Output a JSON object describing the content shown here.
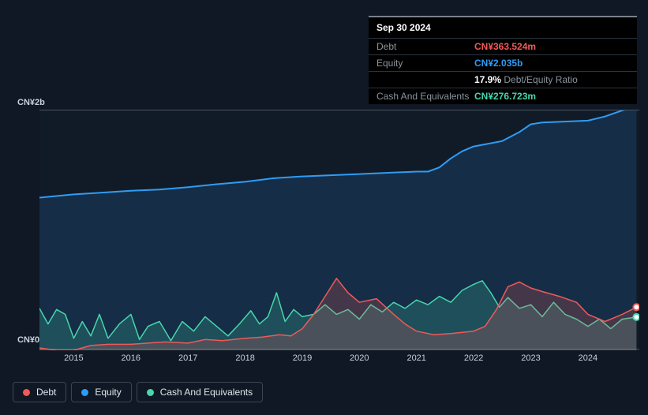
{
  "tooltip": {
    "date": "Sep 30 2024",
    "rows": [
      {
        "label": "Debt",
        "value": "CN¥363.524m",
        "color": "#ef5a5a"
      },
      {
        "label": "Equity",
        "value": "CN¥2.035b",
        "color": "#2f9cf4"
      },
      {
        "label": "",
        "value": "17.9%",
        "suffix": " Debt/Equity Ratio",
        "color": "#ffffff",
        "suffixColor": "#8a949e"
      },
      {
        "label": "Cash And Equivalents",
        "value": "CN¥276.723m",
        "color": "#47d7ac"
      }
    ]
  },
  "chart": {
    "y_max_label": "CN¥2b",
    "y_min_label": "CN¥0",
    "y_max": 2.0,
    "y_min": 0.0,
    "x_min": 2014.4,
    "x_max": 2024.9,
    "x_ticks": [
      2015,
      2016,
      2017,
      2018,
      2019,
      2020,
      2021,
      2022,
      2023,
      2024
    ],
    "background_color": "#111b28",
    "series": [
      {
        "name": "Equity",
        "color": "#2f9cf4",
        "fill_opacity": 0.15,
        "stroke_width": 2,
        "data": [
          [
            2014.4,
            1.273
          ],
          [
            2015.0,
            1.3
          ],
          [
            2015.5,
            1.315
          ],
          [
            2016.0,
            1.33
          ],
          [
            2016.5,
            1.34
          ],
          [
            2017.0,
            1.36
          ],
          [
            2017.5,
            1.385
          ],
          [
            2018.0,
            1.405
          ],
          [
            2018.5,
            1.435
          ],
          [
            2019.0,
            1.45
          ],
          [
            2019.5,
            1.46
          ],
          [
            2020.0,
            1.47
          ],
          [
            2020.5,
            1.48
          ],
          [
            2021.0,
            1.49
          ],
          [
            2021.2,
            1.49
          ],
          [
            2021.4,
            1.525
          ],
          [
            2021.6,
            1.6
          ],
          [
            2021.8,
            1.66
          ],
          [
            2022.0,
            1.7
          ],
          [
            2022.5,
            1.745
          ],
          [
            2022.8,
            1.82
          ],
          [
            2023.0,
            1.885
          ],
          [
            2023.2,
            1.9
          ],
          [
            2023.5,
            1.905
          ],
          [
            2024.0,
            1.915
          ],
          [
            2024.3,
            1.95
          ],
          [
            2024.6,
            2.0
          ],
          [
            2024.85,
            2.035
          ]
        ]
      },
      {
        "name": "Debt",
        "color": "#ef5a5a",
        "fill_opacity": 0.22,
        "stroke_width": 1.5,
        "data": [
          [
            2014.4,
            0.02
          ],
          [
            2014.7,
            0.0
          ],
          [
            2015.0,
            0.0
          ],
          [
            2015.3,
            0.04
          ],
          [
            2015.6,
            0.05
          ],
          [
            2016.0,
            0.05
          ],
          [
            2016.3,
            0.06
          ],
          [
            2016.6,
            0.07
          ],
          [
            2017.0,
            0.06
          ],
          [
            2017.3,
            0.09
          ],
          [
            2017.6,
            0.08
          ],
          [
            2018.0,
            0.1
          ],
          [
            2018.3,
            0.11
          ],
          [
            2018.6,
            0.13
          ],
          [
            2018.8,
            0.12
          ],
          [
            2019.0,
            0.18
          ],
          [
            2019.2,
            0.3
          ],
          [
            2019.4,
            0.45
          ],
          [
            2019.6,
            0.6
          ],
          [
            2019.8,
            0.48
          ],
          [
            2020.0,
            0.4
          ],
          [
            2020.3,
            0.43
          ],
          [
            2020.6,
            0.3
          ],
          [
            2020.8,
            0.22
          ],
          [
            2021.0,
            0.16
          ],
          [
            2021.3,
            0.13
          ],
          [
            2021.6,
            0.14
          ],
          [
            2022.0,
            0.16
          ],
          [
            2022.2,
            0.2
          ],
          [
            2022.4,
            0.34
          ],
          [
            2022.6,
            0.53
          ],
          [
            2022.8,
            0.57
          ],
          [
            2023.0,
            0.52
          ],
          [
            2023.2,
            0.49
          ],
          [
            2023.5,
            0.45
          ],
          [
            2023.8,
            0.4
          ],
          [
            2024.0,
            0.3
          ],
          [
            2024.3,
            0.24
          ],
          [
            2024.6,
            0.3
          ],
          [
            2024.85,
            0.36
          ]
        ]
      },
      {
        "name": "Cash And Equivalents",
        "color": "#47d7ac",
        "fill_opacity": 0.2,
        "stroke_width": 1.5,
        "data": [
          [
            2014.4,
            0.35
          ],
          [
            2014.55,
            0.22
          ],
          [
            2014.7,
            0.34
          ],
          [
            2014.85,
            0.3
          ],
          [
            2015.0,
            0.1
          ],
          [
            2015.15,
            0.24
          ],
          [
            2015.3,
            0.12
          ],
          [
            2015.45,
            0.3
          ],
          [
            2015.6,
            0.1
          ],
          [
            2015.8,
            0.22
          ],
          [
            2016.0,
            0.3
          ],
          [
            2016.15,
            0.09
          ],
          [
            2016.3,
            0.2
          ],
          [
            2016.5,
            0.24
          ],
          [
            2016.7,
            0.08
          ],
          [
            2016.9,
            0.24
          ],
          [
            2017.1,
            0.16
          ],
          [
            2017.3,
            0.28
          ],
          [
            2017.5,
            0.2
          ],
          [
            2017.7,
            0.12
          ],
          [
            2017.9,
            0.22
          ],
          [
            2018.1,
            0.33
          ],
          [
            2018.25,
            0.22
          ],
          [
            2018.4,
            0.28
          ],
          [
            2018.55,
            0.48
          ],
          [
            2018.7,
            0.24
          ],
          [
            2018.85,
            0.34
          ],
          [
            2019.0,
            0.28
          ],
          [
            2019.2,
            0.3
          ],
          [
            2019.4,
            0.38
          ],
          [
            2019.6,
            0.3
          ],
          [
            2019.8,
            0.34
          ],
          [
            2020.0,
            0.26
          ],
          [
            2020.2,
            0.38
          ],
          [
            2020.4,
            0.32
          ],
          [
            2020.6,
            0.4
          ],
          [
            2020.8,
            0.35
          ],
          [
            2021.0,
            0.42
          ],
          [
            2021.2,
            0.38
          ],
          [
            2021.4,
            0.45
          ],
          [
            2021.6,
            0.4
          ],
          [
            2021.8,
            0.5
          ],
          [
            2022.0,
            0.55
          ],
          [
            2022.15,
            0.58
          ],
          [
            2022.3,
            0.48
          ],
          [
            2022.45,
            0.36
          ],
          [
            2022.6,
            0.44
          ],
          [
            2022.8,
            0.35
          ],
          [
            2023.0,
            0.38
          ],
          [
            2023.2,
            0.28
          ],
          [
            2023.4,
            0.4
          ],
          [
            2023.6,
            0.3
          ],
          [
            2023.8,
            0.26
          ],
          [
            2024.0,
            0.2
          ],
          [
            2024.2,
            0.26
          ],
          [
            2024.4,
            0.18
          ],
          [
            2024.6,
            0.26
          ],
          [
            2024.85,
            0.277
          ]
        ]
      }
    ],
    "markers": [
      {
        "series": "Equity",
        "x": 2024.85,
        "y": 2.035,
        "border": "#2f9cf4"
      },
      {
        "series": "Debt",
        "x": 2024.85,
        "y": 0.36,
        "border": "#ef5a5a"
      },
      {
        "series": "Cash And Equivalents",
        "x": 2024.85,
        "y": 0.277,
        "border": "#47d7ac"
      }
    ]
  },
  "legend": [
    {
      "label": "Debt",
      "color": "#ef5a5a"
    },
    {
      "label": "Equity",
      "color": "#2f9cf4"
    },
    {
      "label": "Cash And Equivalents",
      "color": "#47d7ac"
    }
  ]
}
